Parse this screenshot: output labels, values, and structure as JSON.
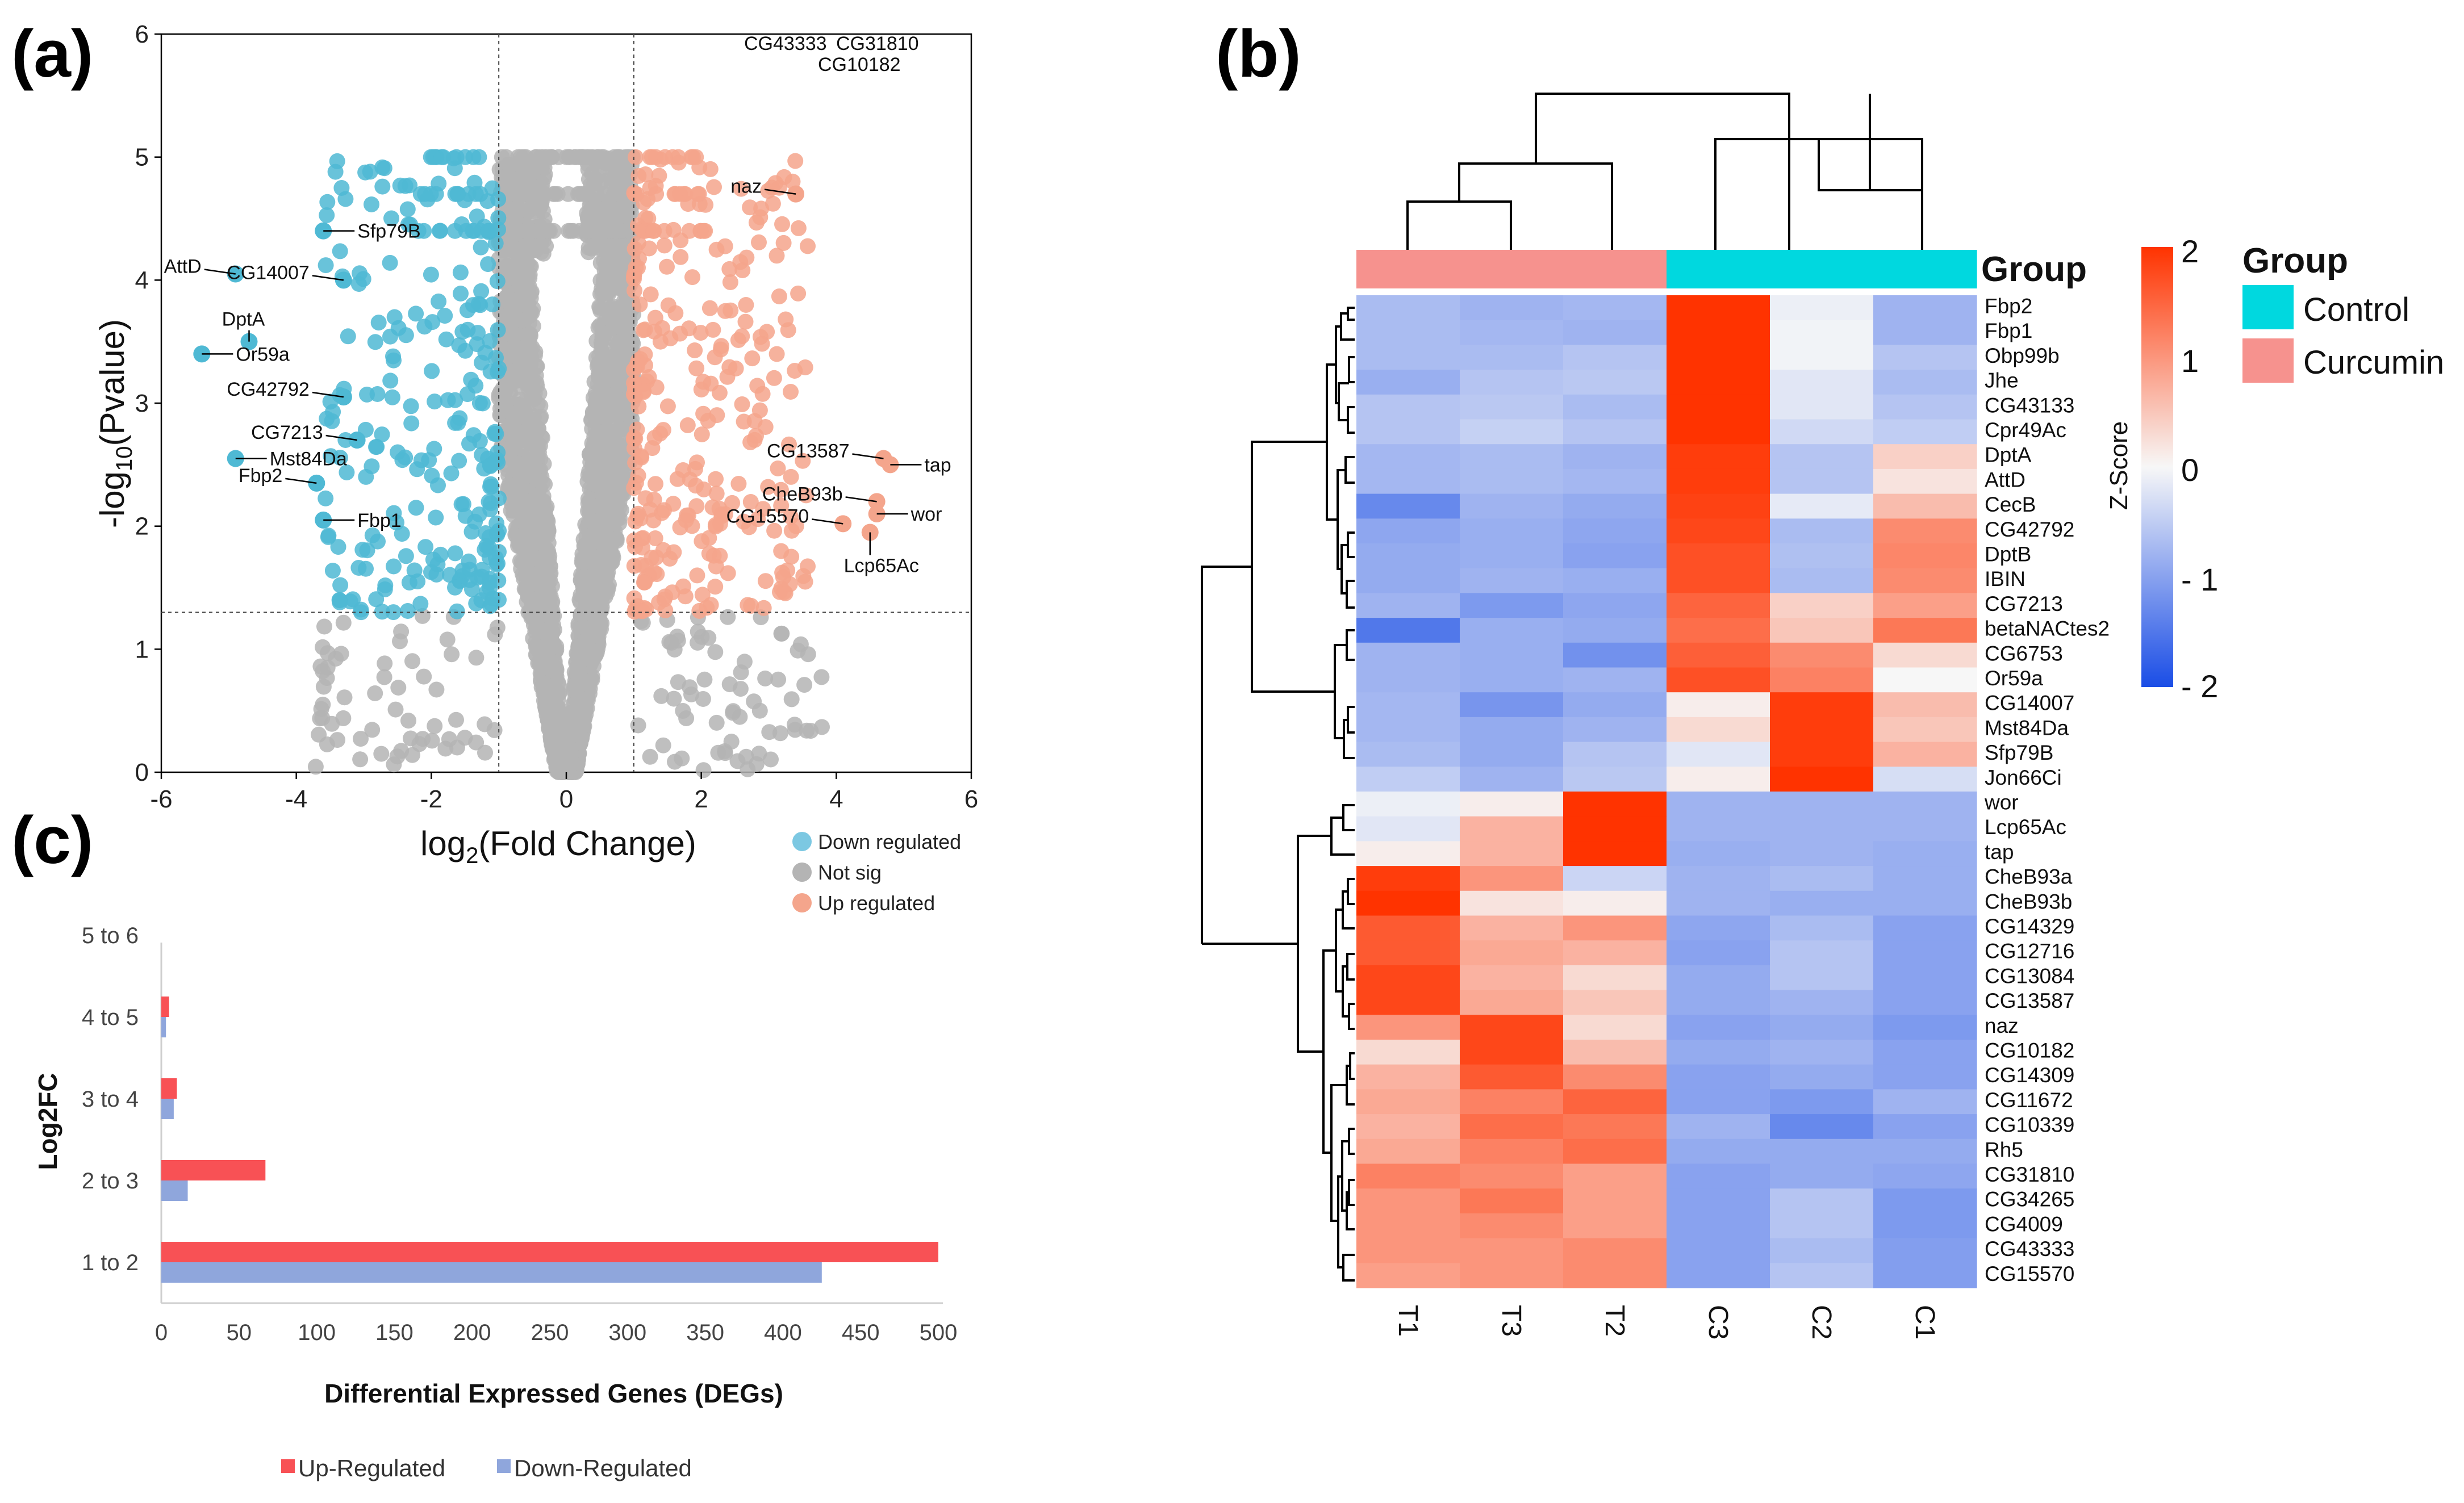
{
  "panels": {
    "a": "(a)",
    "b": "(b)",
    "c": "(c)"
  },
  "colors": {
    "down": "#4fb9d4",
    "notsig": "#b4b4b4",
    "up": "#f4a58c",
    "heat_low": "#1a4de6",
    "heat_mid": "#f7f7f7",
    "heat_high": "#ff3300",
    "control": "#00d8df",
    "curcumin": "#f6928e",
    "bar_up": "#f85155",
    "bar_down": "#8fa6dc"
  },
  "chart_data": [
    {
      "type": "scatter",
      "title": "",
      "xlabel_main": "log",
      "xlabel_sub": "2",
      "xlabel_rest": "(Fold Change)",
      "ylabel_main": "-log",
      "ylabel_sub": "10",
      "ylabel_rest": "(Pvalue)",
      "xlim": [
        -6,
        6
      ],
      "ylim": [
        0,
        6
      ],
      "xticks": [
        "-6",
        "-4",
        "-2",
        "0",
        "2",
        "4",
        "6"
      ],
      "yticks": [
        "0",
        "1",
        "2",
        "3",
        "4",
        "5",
        "6"
      ],
      "thresholds": {
        "fc": [
          -1,
          1
        ],
        "p": 1.3
      },
      "legend": [
        "Down regulated",
        "Not sig",
        "Up regulated"
      ],
      "labeled_points": [
        {
          "gene": "Sfp79B",
          "x": -3.6,
          "y": 4.4,
          "side": "right",
          "group": "down"
        },
        {
          "gene": "AttD",
          "x": -4.9,
          "y": 4.05,
          "side": "left",
          "group": "down"
        },
        {
          "gene": "CG14007",
          "x": -3.3,
          "y": 4.0,
          "side": "left",
          "group": "down"
        },
        {
          "gene": "DptA",
          "x": -4.7,
          "y": 3.5,
          "side": "leftabove",
          "group": "down"
        },
        {
          "gene": "Or59a",
          "x": -5.4,
          "y": 3.4,
          "side": "right",
          "group": "down"
        },
        {
          "gene": "CG42792",
          "x": -3.3,
          "y": 3.05,
          "side": "left",
          "group": "down"
        },
        {
          "gene": "CG7213",
          "x": -3.1,
          "y": 2.7,
          "side": "left",
          "group": "down"
        },
        {
          "gene": "Mst84Da",
          "x": -4.9,
          "y": 2.55,
          "side": "right",
          "group": "down"
        },
        {
          "gene": "Fbp2",
          "x": -3.7,
          "y": 2.35,
          "side": "left",
          "group": "down"
        },
        {
          "gene": "Fbp1",
          "x": -3.6,
          "y": 2.05,
          "side": "right",
          "group": "down"
        },
        {
          "gene": "naz",
          "x": 3.4,
          "y": 4.7,
          "side": "left",
          "group": "up"
        },
        {
          "gene": "CG13587",
          "x": 4.7,
          "y": 2.55,
          "side": "left",
          "group": "up"
        },
        {
          "gene": "tap",
          "x": 4.8,
          "y": 2.5,
          "side": "right",
          "group": "up"
        },
        {
          "gene": "CheB93b",
          "x": 4.6,
          "y": 2.2,
          "side": "left",
          "group": "up"
        },
        {
          "gene": "wor",
          "x": 4.6,
          "y": 2.1,
          "side": "right",
          "group": "up"
        },
        {
          "gene": "CG15570",
          "x": 4.1,
          "y": 2.02,
          "side": "left",
          "group": "up"
        },
        {
          "gene": "Lcp65Ac",
          "x": 4.5,
          "y": 1.95,
          "side": "below",
          "group": "up"
        }
      ],
      "top_labels": [
        "CG43333",
        "CG31810",
        "CG10182"
      ]
    },
    {
      "type": "heatmap",
      "columns": [
        "T1",
        "T3",
        "T2",
        "C3",
        "C2",
        "C1"
      ],
      "group_row_label": "Group",
      "column_groups": [
        "Curcumin",
        "Curcumin",
        "Curcumin",
        "Control",
        "Control",
        "Control"
      ],
      "legend_title": "Group",
      "legend_items": [
        "Control",
        "Curcumin"
      ],
      "colorbar": {
        "title": "Z-Score",
        "range": [
          -2,
          2
        ],
        "ticks": [
          "2",
          "1",
          "0",
          "- 1",
          "- 2"
        ]
      },
      "rows": [
        {
          "gene": "Fbp2",
          "z": [
            -0.7,
            -0.8,
            -0.75,
            2.0,
            -0.1,
            -0.8
          ]
        },
        {
          "gene": "Fbp1",
          "z": [
            -0.7,
            -0.75,
            -0.8,
            2.0,
            -0.05,
            -0.8
          ]
        },
        {
          "gene": "Obp99b",
          "z": [
            -0.7,
            -0.7,
            -0.6,
            2.0,
            -0.05,
            -0.6
          ]
        },
        {
          "gene": "Jhe",
          "z": [
            -0.85,
            -0.6,
            -0.55,
            2.0,
            -0.2,
            -0.7
          ]
        },
        {
          "gene": "CG43133",
          "z": [
            -0.6,
            -0.55,
            -0.7,
            2.0,
            -0.2,
            -0.6
          ]
        },
        {
          "gene": "Cpr49Ac",
          "z": [
            -0.6,
            -0.45,
            -0.6,
            2.0,
            -0.35,
            -0.5
          ]
        },
        {
          "gene": "DptA",
          "z": [
            -0.75,
            -0.7,
            -0.8,
            1.9,
            -0.6,
            0.4
          ]
        },
        {
          "gene": "AttD",
          "z": [
            -0.75,
            -0.7,
            -0.75,
            1.9,
            -0.6,
            0.2
          ]
        },
        {
          "gene": "CecB",
          "z": [
            -1.3,
            -0.8,
            -0.9,
            1.85,
            -0.15,
            0.6
          ]
        },
        {
          "gene": "CG42792",
          "z": [
            -0.95,
            -0.85,
            -0.95,
            1.8,
            -0.7,
            1.1
          ]
        },
        {
          "gene": "DptB",
          "z": [
            -0.9,
            -0.85,
            -1.0,
            1.7,
            -0.65,
            1.15
          ]
        },
        {
          "gene": "IBIN",
          "z": [
            -0.9,
            -0.8,
            -0.85,
            1.7,
            -0.7,
            1.1
          ]
        },
        {
          "gene": "CG7213",
          "z": [
            -0.8,
            -1.1,
            -0.95,
            1.5,
            0.4,
            0.9
          ]
        },
        {
          "gene": "betaNACtes2",
          "z": [
            -1.5,
            -0.85,
            -0.9,
            1.4,
            0.5,
            1.3
          ]
        },
        {
          "gene": "CG6753",
          "z": [
            -0.8,
            -0.85,
            -1.2,
            1.55,
            1.1,
            0.3
          ]
        },
        {
          "gene": "Or59a",
          "z": [
            -0.8,
            -0.85,
            -0.8,
            1.7,
            1.2,
            0.0
          ]
        },
        {
          "gene": "CG14007",
          "z": [
            -0.75,
            -1.15,
            -0.9,
            0.1,
            1.9,
            0.6
          ]
        },
        {
          "gene": "Mst84Da",
          "z": [
            -0.75,
            -0.9,
            -0.8,
            0.3,
            1.9,
            0.5
          ]
        },
        {
          "gene": "Sfp79B",
          "z": [
            -0.7,
            -0.9,
            -0.6,
            -0.2,
            1.9,
            0.7
          ]
        },
        {
          "gene": "Jon66Ci",
          "z": [
            -0.5,
            -0.8,
            -0.55,
            0.1,
            2.0,
            -0.3
          ]
        },
        {
          "gene": "wor",
          "z": [
            -0.1,
            0.1,
            2.0,
            -0.8,
            -0.8,
            -0.8
          ]
        },
        {
          "gene": "Lcp65Ac",
          "z": [
            -0.2,
            0.7,
            2.0,
            -0.8,
            -0.8,
            -0.8
          ]
        },
        {
          "gene": "tap",
          "z": [
            0.1,
            0.7,
            2.0,
            -0.85,
            -0.8,
            -0.85
          ]
        },
        {
          "gene": "CheB93a",
          "z": [
            1.9,
            1.0,
            -0.4,
            -0.8,
            -0.7,
            -0.85
          ]
        },
        {
          "gene": "CheB93b",
          "z": [
            2.0,
            0.2,
            0.1,
            -0.8,
            -0.85,
            -0.85
          ]
        },
        {
          "gene": "CG14329",
          "z": [
            1.6,
            0.7,
            1.0,
            -0.95,
            -0.7,
            -1.0
          ]
        },
        {
          "gene": "CG12716",
          "z": [
            1.6,
            0.8,
            0.7,
            -1.0,
            -0.6,
            -1.0
          ]
        },
        {
          "gene": "CG13084",
          "z": [
            1.8,
            0.7,
            0.3,
            -0.9,
            -0.6,
            -1.0
          ]
        },
        {
          "gene": "CG13587",
          "z": [
            1.8,
            0.8,
            0.5,
            -0.9,
            -0.8,
            -1.0
          ]
        },
        {
          "gene": "naz",
          "z": [
            1.0,
            1.8,
            0.3,
            -1.0,
            -0.9,
            -1.1
          ]
        },
        {
          "gene": "CG10182",
          "z": [
            0.3,
            1.8,
            0.6,
            -0.9,
            -0.8,
            -1.0
          ]
        },
        {
          "gene": "CG14309",
          "z": [
            0.7,
            1.6,
            1.1,
            -1.0,
            -0.9,
            -1.0
          ]
        },
        {
          "gene": "CG11672",
          "z": [
            0.8,
            1.2,
            1.5,
            -1.0,
            -1.1,
            -0.8
          ]
        },
        {
          "gene": "CG10339",
          "z": [
            0.7,
            1.4,
            1.3,
            -0.8,
            -1.3,
            -1.0
          ]
        },
        {
          "gene": "Rh5",
          "z": [
            0.8,
            1.2,
            1.4,
            -0.9,
            -0.9,
            -0.9
          ]
        },
        {
          "gene": "CG31810",
          "z": [
            1.2,
            1.1,
            0.9,
            -1.0,
            -0.9,
            -0.95
          ]
        },
        {
          "gene": "CG34265",
          "z": [
            1.0,
            1.3,
            0.9,
            -1.0,
            -0.6,
            -1.1
          ]
        },
        {
          "gene": "CG4009",
          "z": [
            1.0,
            1.1,
            0.9,
            -1.0,
            -0.6,
            -1.1
          ]
        },
        {
          "gene": "CG43333",
          "z": [
            1.0,
            1.0,
            1.1,
            -1.0,
            -0.7,
            -1.05
          ]
        },
        {
          "gene": "CG15570",
          "z": [
            0.9,
            1.0,
            1.1,
            -1.0,
            -0.6,
            -1.05
          ]
        }
      ]
    },
    {
      "type": "bar",
      "orientation": "horizontal",
      "categories": [
        "1 to 2",
        "2 to 3",
        "3 to 4",
        "4 to 5",
        "5 to 6"
      ],
      "series": [
        {
          "name": "Up-Regulated",
          "values": [
            500,
            67,
            10,
            5,
            0
          ]
        },
        {
          "name": "Down-Regulated",
          "values": [
            425,
            17,
            8,
            3,
            0
          ]
        }
      ],
      "xlabel": "Differential Expressed Genes (DEGs)",
      "ylabel": "Log2FC",
      "xlim": [
        0,
        500
      ],
      "xticks": [
        "0",
        "50",
        "100",
        "150",
        "200",
        "250",
        "300",
        "350",
        "400",
        "450",
        "500"
      ],
      "legend": [
        "Up-Regulated",
        "Down-Regulated"
      ]
    }
  ]
}
